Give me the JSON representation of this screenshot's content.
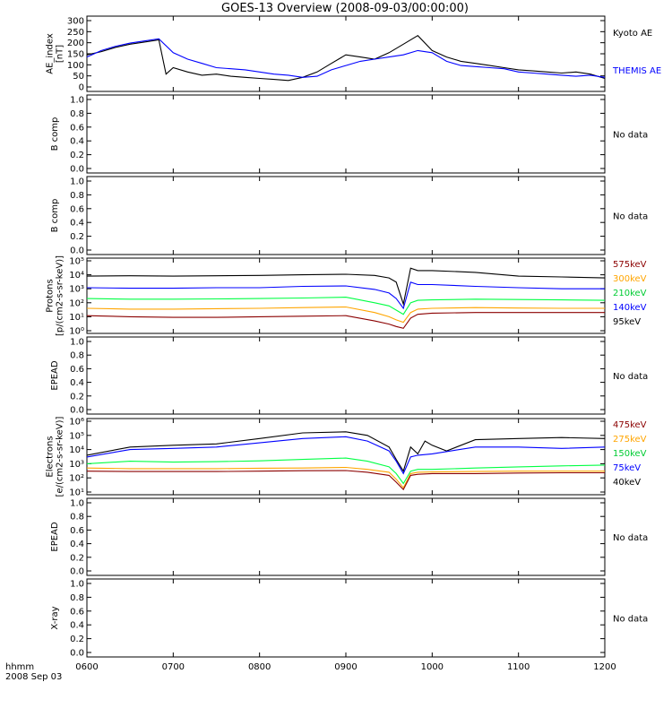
{
  "title": "GOES-13 Overview (2008-09-03/00:00:00)",
  "footer": {
    "line1": "hhmm",
    "line2": "2008 Sep 03"
  },
  "x_axis": {
    "ticks": [
      "0600",
      "0700",
      "0800",
      "0900",
      "1000",
      "1100",
      "1200"
    ],
    "range": [
      "06:00",
      "12:00"
    ]
  },
  "no_data_text": "No data",
  "colors": {
    "black": "#000000",
    "blue": "#0000ff",
    "green": "#00ff44",
    "orange": "#ffa500",
    "darkred": "#8b0000",
    "red": "#ff2a00",
    "axis": "#000000"
  },
  "chart_data": [
    {
      "type": "line",
      "ylabel": "AE_index [nT]",
      "ylabel_lines": [
        "AE_index",
        "[nT]"
      ],
      "yticks": [
        "300",
        "250",
        "200",
        "150",
        "100",
        "50",
        "0"
      ],
      "ylim": [
        0,
        310
      ],
      "series": [
        {
          "name": "Kyoto AE",
          "color": "#000000",
          "x": [
            "06:00",
            "06:10",
            "06:20",
            "06:30",
            "06:40",
            "06:50",
            "06:55",
            "07:00",
            "07:10",
            "07:20",
            "07:30",
            "07:40",
            "07:50",
            "08:00",
            "08:10",
            "08:20",
            "08:30",
            "08:40",
            "08:50",
            "09:00",
            "09:10",
            "09:20",
            "09:30",
            "09:40",
            "09:50",
            "10:00",
            "10:10",
            "10:20",
            "10:30",
            "10:40",
            "10:50",
            "11:00",
            "11:10",
            "11:20",
            "11:30",
            "11:40",
            "11:50",
            "12:00"
          ],
          "values": [
            150,
            165,
            185,
            200,
            210,
            220,
            60,
            90,
            70,
            55,
            60,
            50,
            45,
            40,
            35,
            30,
            45,
            70,
            110,
            150,
            140,
            130,
            160,
            200,
            240,
            170,
            140,
            120,
            110,
            100,
            90,
            80,
            75,
            70,
            65,
            70,
            60,
            40
          ]
        },
        {
          "name": "THEMIS AE",
          "color": "#0000ff",
          "x": [
            "06:00",
            "06:10",
            "06:20",
            "06:30",
            "06:40",
            "06:50",
            "07:00",
            "07:10",
            "07:20",
            "07:30",
            "07:40",
            "07:50",
            "08:00",
            "08:10",
            "08:20",
            "08:30",
            "08:40",
            "08:50",
            "09:00",
            "09:10",
            "09:20",
            "09:30",
            "09:40",
            "09:50",
            "10:00",
            "10:10",
            "10:20",
            "10:30",
            "10:40",
            "10:50",
            "11:00",
            "11:10",
            "11:20",
            "11:30",
            "11:40",
            "11:50",
            "12:00"
          ],
          "values": [
            140,
            170,
            190,
            205,
            215,
            225,
            160,
            130,
            110,
            90,
            85,
            80,
            70,
            60,
            55,
            45,
            50,
            80,
            100,
            120,
            130,
            140,
            150,
            170,
            160,
            120,
            100,
            95,
            90,
            85,
            70,
            65,
            60,
            55,
            50,
            55,
            45
          ]
        }
      ],
      "legend": [
        {
          "label": "Kyoto AE",
          "color": "#000000"
        },
        {
          "label": "THEMIS AE",
          "color": "#0000ff"
        }
      ]
    },
    {
      "type": "line",
      "ylabel": "B comp",
      "ylabel_lines": [
        "B comp"
      ],
      "yticks": [
        "1.0",
        "0.8",
        "0.6",
        "0.4",
        "0.2",
        "0.0"
      ],
      "ylim": [
        0,
        1
      ],
      "series": [],
      "legend": [
        {
          "label": "No data",
          "color": "#000000"
        }
      ]
    },
    {
      "type": "line",
      "ylabel": "B comp",
      "ylabel_lines": [
        "B comp"
      ],
      "yticks": [
        "1.0",
        "0.8",
        "0.6",
        "0.4",
        "0.2",
        "0.0"
      ],
      "ylim": [
        0,
        1
      ],
      "series": [],
      "legend": [
        {
          "label": "No data",
          "color": "#000000"
        }
      ]
    },
    {
      "type": "line",
      "scale": "log",
      "ylabel": "Protons [p/(cm2-s-sr-keV)]",
      "ylabel_lines": [
        "Protons",
        "[p/(cm2-s-sr-keV)]"
      ],
      "yticks": [
        "10⁵",
        "10⁴",
        "10³",
        "10²",
        "10¹",
        "10⁰"
      ],
      "ylim": [
        1,
        100000
      ],
      "series": [
        {
          "name": "95keV",
          "color": "#000000",
          "x": [
            "06:00",
            "06:30",
            "07:00",
            "07:30",
            "08:00",
            "08:30",
            "09:00",
            "09:20",
            "09:30",
            "09:35",
            "09:40",
            "09:45",
            "09:50",
            "10:00",
            "10:30",
            "11:00",
            "11:30",
            "12:00"
          ],
          "values": [
            8000,
            8500,
            8000,
            8500,
            9000,
            10000,
            11000,
            9000,
            6000,
            3000,
            80,
            30000,
            20000,
            20000,
            15000,
            8000,
            7000,
            6000
          ]
        },
        {
          "name": "140keV",
          "color": "#0000ff",
          "x": [
            "06:00",
            "06:30",
            "07:00",
            "07:30",
            "08:00",
            "08:30",
            "09:00",
            "09:20",
            "09:30",
            "09:35",
            "09:40",
            "09:45",
            "09:50",
            "10:00",
            "10:30",
            "11:00",
            "11:30",
            "12:00"
          ],
          "values": [
            1200,
            1100,
            1100,
            1200,
            1200,
            1500,
            1600,
            900,
            500,
            200,
            40,
            3000,
            2000,
            2000,
            1500,
            1200,
            1000,
            1000
          ]
        },
        {
          "name": "210keV",
          "color": "#00ff44",
          "x": [
            "06:00",
            "06:30",
            "07:00",
            "07:30",
            "08:00",
            "08:30",
            "09:00",
            "09:20",
            "09:30",
            "09:35",
            "09:40",
            "09:45",
            "09:50",
            "10:00",
            "10:30",
            "11:00",
            "11:30",
            "12:00"
          ],
          "values": [
            200,
            180,
            180,
            190,
            200,
            220,
            250,
            100,
            60,
            30,
            15,
            100,
            150,
            160,
            180,
            170,
            160,
            150
          ]
        },
        {
          "name": "300keV",
          "color": "#ffa500",
          "x": [
            "06:00",
            "06:30",
            "07:00",
            "07:30",
            "08:00",
            "08:30",
            "09:00",
            "09:20",
            "09:30",
            "09:35",
            "09:40",
            "09:45",
            "09:50",
            "10:00",
            "10:30",
            "11:00",
            "11:30",
            "12:00"
          ],
          "values": [
            40,
            35,
            35,
            38,
            40,
            45,
            50,
            20,
            10,
            6,
            4,
            20,
            35,
            40,
            45,
            42,
            40,
            40
          ]
        },
        {
          "name": "575keV",
          "color": "#8b0000",
          "x": [
            "06:00",
            "06:30",
            "07:00",
            "07:30",
            "08:00",
            "08:30",
            "09:00",
            "09:20",
            "09:30",
            "09:35",
            "09:40",
            "09:45",
            "09:50",
            "10:00",
            "10:30",
            "11:00",
            "11:30",
            "12:00"
          ],
          "values": [
            12,
            10,
            9,
            9,
            10,
            11,
            12,
            5,
            3,
            2,
            1.5,
            8,
            15,
            18,
            20,
            20,
            20,
            20
          ]
        }
      ],
      "legend": [
        {
          "label": "575keV",
          "color": "#8b0000"
        },
        {
          "label": "300keV",
          "color": "#ffa500"
        },
        {
          "label": "210keV",
          "color": "#00cc33"
        },
        {
          "label": "140keV",
          "color": "#0000ff"
        },
        {
          "label": "95keV",
          "color": "#000000"
        }
      ]
    },
    {
      "type": "line",
      "ylabel": "EPEAD",
      "ylabel_lines": [
        "EPEAD"
      ],
      "yticks": [
        "1.0",
        "0.8",
        "0.6",
        "0.4",
        "0.2",
        "0.0"
      ],
      "ylim": [
        0,
        1
      ],
      "series": [],
      "legend": [
        {
          "label": "No data",
          "color": "#000000"
        }
      ]
    },
    {
      "type": "line",
      "scale": "log",
      "ylabel": "Electrons [e/(cm2-s-sr-keV)]",
      "ylabel_lines": [
        "Electrons",
        "[e/(cm2-s-sr-keV)]"
      ],
      "yticks": [
        "10⁶",
        "10⁵",
        "10⁴",
        "10³",
        "10²",
        "10¹"
      ],
      "ylim": [
        10,
        1000000
      ],
      "series": [
        {
          "name": "40keV",
          "color": "#000000",
          "x": [
            "06:00",
            "06:30",
            "07:00",
            "07:30",
            "08:00",
            "08:30",
            "09:00",
            "09:15",
            "09:30",
            "09:35",
            "09:40",
            "09:45",
            "09:50",
            "09:55",
            "10:00",
            "10:10",
            "10:30",
            "11:00",
            "11:30",
            "12:00"
          ],
          "values": [
            4000,
            15000,
            20000,
            25000,
            60000,
            150000,
            180000,
            100000,
            15000,
            2000,
            300,
            15000,
            5000,
            40000,
            20000,
            8000,
            50000,
            60000,
            70000,
            60000
          ]
        },
        {
          "name": "75keV",
          "color": "#0000ff",
          "x": [
            "06:00",
            "06:30",
            "07:00",
            "07:30",
            "08:00",
            "08:30",
            "09:00",
            "09:15",
            "09:30",
            "09:35",
            "09:40",
            "09:45",
            "09:50",
            "10:00",
            "10:30",
            "11:00",
            "11:30",
            "12:00"
          ],
          "values": [
            3000,
            10000,
            12000,
            15000,
            30000,
            60000,
            80000,
            40000,
            8000,
            1500,
            200,
            3000,
            4000,
            5000,
            15000,
            15000,
            12000,
            15000
          ]
        },
        {
          "name": "150keV",
          "color": "#00ff44",
          "x": [
            "06:00",
            "06:30",
            "07:00",
            "07:30",
            "08:00",
            "08:30",
            "09:00",
            "09:15",
            "09:30",
            "09:35",
            "09:40",
            "09:45",
            "09:50",
            "10:00",
            "10:30",
            "11:00",
            "11:30",
            "12:00"
          ],
          "values": [
            1000,
            1500,
            1300,
            1400,
            1600,
            2000,
            2500,
            1500,
            600,
            200,
            40,
            300,
            400,
            400,
            500,
            600,
            700,
            800
          ]
        },
        {
          "name": "275keV",
          "color": "#ffa500",
          "x": [
            "06:00",
            "06:30",
            "07:00",
            "07:30",
            "08:00",
            "08:30",
            "09:00",
            "09:15",
            "09:30",
            "09:35",
            "09:40",
            "09:45",
            "09:50",
            "10:00",
            "10:30",
            "11:00",
            "11:30",
            "12:00"
          ],
          "values": [
            500,
            450,
            450,
            450,
            480,
            500,
            550,
            400,
            250,
            80,
            20,
            200,
            250,
            260,
            280,
            300,
            300,
            300
          ]
        },
        {
          "name": "475keV",
          "color": "#8b0000",
          "x": [
            "06:00",
            "06:30",
            "07:00",
            "07:30",
            "08:00",
            "08:30",
            "09:00",
            "09:15",
            "09:30",
            "09:35",
            "09:40",
            "09:45",
            "09:50",
            "10:00",
            "10:30",
            "11:00",
            "11:30",
            "12:00"
          ],
          "values": [
            300,
            280,
            280,
            280,
            300,
            320,
            330,
            250,
            150,
            50,
            15,
            150,
            180,
            200,
            200,
            220,
            230,
            230
          ]
        }
      ],
      "legend": [
        {
          "label": "475keV",
          "color": "#8b0000"
        },
        {
          "label": "275keV",
          "color": "#ffa500"
        },
        {
          "label": "150keV",
          "color": "#00cc33"
        },
        {
          "label": "75keV",
          "color": "#0000ff"
        },
        {
          "label": "40keV",
          "color": "#000000"
        }
      ]
    },
    {
      "type": "line",
      "ylabel": "EPEAD",
      "ylabel_lines": [
        "EPEAD"
      ],
      "yticks": [
        "1.0",
        "0.8",
        "0.6",
        "0.4",
        "0.2",
        "0.0"
      ],
      "ylim": [
        0,
        1
      ],
      "series": [],
      "legend": [
        {
          "label": "No data",
          "color": "#000000"
        }
      ]
    },
    {
      "type": "line",
      "ylabel": "X-ray",
      "ylabel_lines": [
        "X-ray"
      ],
      "yticks": [
        "1.0",
        "0.8",
        "0.6",
        "0.4",
        "0.2",
        "0.0"
      ],
      "ylim": [
        0,
        1
      ],
      "series": [],
      "legend": [
        {
          "label": "No data",
          "color": "#000000"
        }
      ]
    }
  ]
}
